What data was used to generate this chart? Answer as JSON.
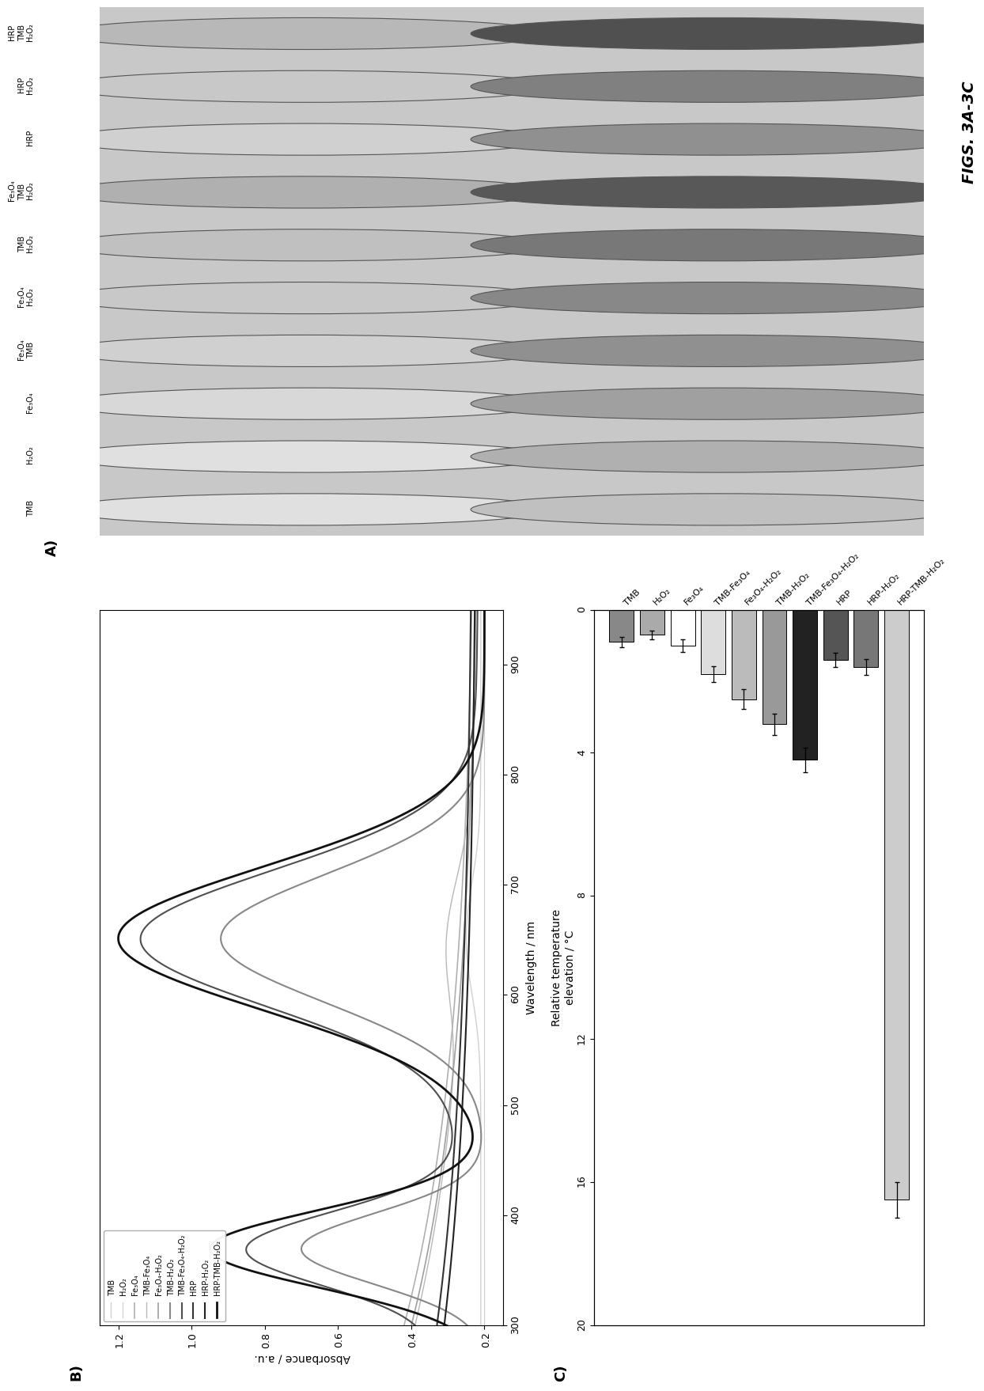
{
  "fig_label": "FIGS. 3A-3C",
  "panel_C": {
    "bars": [
      {
        "label": "TMB",
        "value": 0.9,
        "error": 0.15,
        "color": "#888888"
      },
      {
        "label": "H₂O₂",
        "value": 0.7,
        "error": 0.12,
        "color": "#aaaaaa"
      },
      {
        "label": "Fe₃O₄",
        "value": 1.0,
        "error": 0.18,
        "color": "#ffffff"
      },
      {
        "label": "TMB-Fe₃O₄",
        "value": 1.8,
        "error": 0.22,
        "color": "#dddddd"
      },
      {
        "label": "Fe₃O₄-H₂O₂",
        "value": 2.5,
        "error": 0.28,
        "color": "#bbbbbb"
      },
      {
        "label": "TMB-H₂O₂",
        "value": 3.2,
        "error": 0.3,
        "color": "#999999"
      },
      {
        "label": "TMB-Fe₃O₄-H₂O₂",
        "value": 4.2,
        "error": 0.35,
        "color": "#222222"
      },
      {
        "label": "HRP",
        "value": 1.4,
        "error": 0.2,
        "color": "#555555"
      },
      {
        "label": "HRP-H₂O₂",
        "value": 1.6,
        "error": 0.22,
        "color": "#777777"
      },
      {
        "label": "HRP-TMB-H₂O₂",
        "value": 16.5,
        "error": 0.5,
        "color": "#cccccc"
      }
    ],
    "xlim": [
      0,
      20
    ],
    "xticks": [
      0,
      4,
      8,
      12,
      16,
      20
    ],
    "xlabel": "Relative temperature\nelevation / °C"
  },
  "panel_B": {
    "xlabel": "Wavelength / nm",
    "ylabel": "Absorbance / a.u.",
    "xlim": [
      300,
      950
    ],
    "ylim": [
      0.15,
      1.25
    ],
    "xticks": [
      300,
      400,
      500,
      600,
      700,
      800,
      900
    ],
    "yticks": [
      0.2,
      0.4,
      0.6,
      0.8,
      1.0,
      1.2
    ],
    "legend_labels": [
      "TMB",
      "H₂O₂",
      "Fe₃O₄",
      "TMB-Fe₃O₄",
      "Fe₃O₄-H₂O₂",
      "TMB-H₂O₂",
      "TMB-Fe₃O₄-H₂O₂",
      "HRP",
      "HRP-H₂O₂",
      "HRP-TMB-H₂O₂"
    ],
    "line_colors": [
      "#d0d0d0",
      "#cccccc",
      "#b0b0b0",
      "#b8b8b8",
      "#a0a0a0",
      "#888888",
      "#505050",
      "#333333",
      "#222222",
      "#111111"
    ],
    "line_widths": [
      1.0,
      0.8,
      1.2,
      1.0,
      1.2,
      1.5,
      1.5,
      1.5,
      1.5,
      2.0
    ]
  },
  "panel_A": {
    "well_labels": [
      "TMB",
      "H₂O₂",
      "Fe₃O₄",
      "Fe₃O₄\nTMB",
      "Fe₃O₄\nH₂O₂",
      "TMB\nH₂O₂",
      "Fe₃O₄\nTMB\nH₂O₂",
      "HRP",
      "HRP\nH₂O₂",
      "HRP\nTMB\nH₂O₂"
    ],
    "row1_colors": [
      "#e0e0e0",
      "#e0e0e0",
      "#d8d8d8",
      "#d0d0d0",
      "#c8c8c8",
      "#c0c0c0",
      "#b0b0b0",
      "#d0d0d0",
      "#c8c8c8",
      "#b8b8b8"
    ],
    "row2_colors": [
      "#c0c0c0",
      "#b0b0b0",
      "#a0a0a0",
      "#909090",
      "#888888",
      "#787878",
      "#585858",
      "#909090",
      "#808080",
      "#505050"
    ]
  }
}
